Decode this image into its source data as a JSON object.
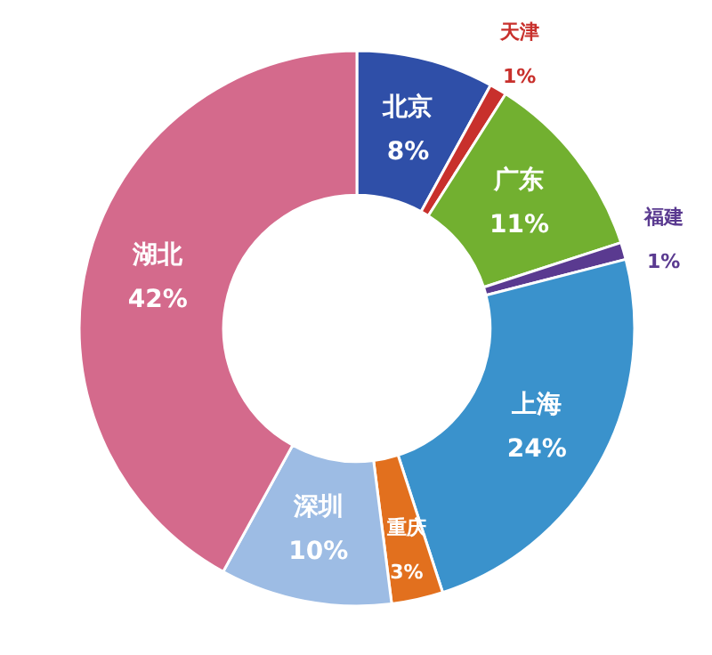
{
  "chart_data": {
    "type": "donut",
    "categories": [
      "北京",
      "天津",
      "广东",
      "福建",
      "上海",
      "重庆",
      "深圳",
      "湖北"
    ],
    "values": [
      8,
      1,
      11,
      1,
      24,
      3,
      10,
      42
    ],
    "value_labels": [
      "8%",
      "1%",
      "11%",
      "1%",
      "24%",
      "3%",
      "10%",
      "42%"
    ],
    "colors": [
      "#2f4fa8",
      "#c8302c",
      "#72b030",
      "#5a3a90",
      "#3a92cc",
      "#e2701e",
      "#9dbce4",
      "#d46a8c"
    ]
  }
}
